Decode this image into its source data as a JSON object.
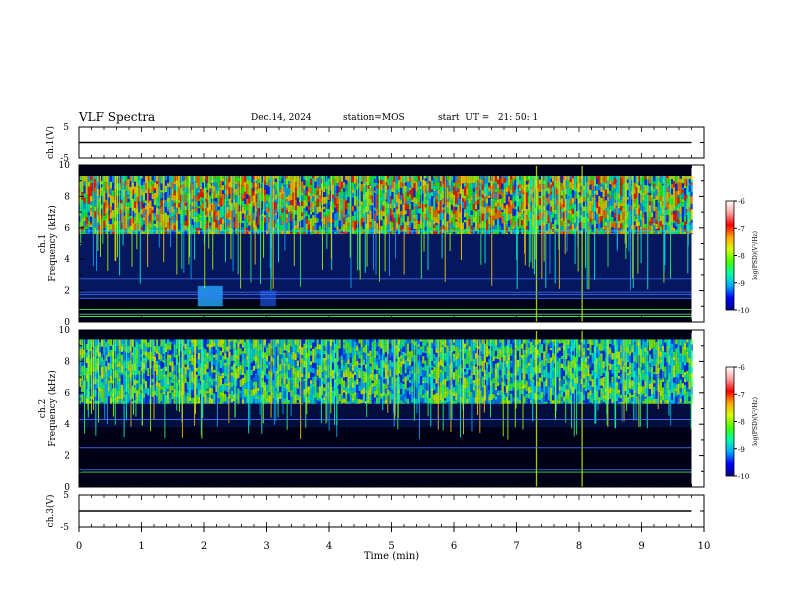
{
  "header": {
    "title": "VLF Spectra",
    "date": "Dec.14, 2024",
    "station": "station=MOS",
    "start": "start  UT =   21: 50: 1"
  },
  "chart_data": [
    {
      "type": "line",
      "ylabel": "ch.1(V)",
      "ylim": [
        -5,
        5
      ],
      "yticks": [
        5,
        -5
      ],
      "series": [
        {
          "x": [
            0,
            9.8
          ],
          "y": [
            0,
            0
          ]
        }
      ]
    },
    {
      "type": "heatmap",
      "ylabel_lines": [
        "ch.1",
        "Frequency (kHz)"
      ],
      "ylim": [
        0,
        10
      ],
      "yticks": [
        0,
        2,
        4,
        6,
        8,
        10
      ],
      "xlim": [
        0,
        10
      ],
      "data_x_end": 9.8,
      "colorbar": {
        "label": "log(PSD)(V²/Hz)",
        "range": [
          -10,
          -6
        ],
        "ticks": [
          "-6",
          "-7",
          "-8",
          "-9",
          "-10"
        ],
        "colors": [
          "#00008a",
          "#0000ff",
          "#00aaff",
          "#00ffaa",
          "#44ff00",
          "#d8ff00",
          "#ffaa00",
          "#ff0000",
          "#ff9e9e",
          "#ffffff"
        ]
      }
    },
    {
      "type": "heatmap",
      "ylabel_lines": [
        "ch.2",
        "Frequency (kHz)"
      ],
      "ylim": [
        0,
        10
      ],
      "yticks": [
        0,
        2,
        4,
        6,
        8,
        10
      ],
      "xlim": [
        0,
        10
      ],
      "data_x_end": 9.8,
      "colorbar": {
        "label": "log(PSD)(V²/Hz)",
        "range": [
          -10,
          -6
        ],
        "ticks": [
          "-6",
          "-7",
          "-8",
          "-9",
          "-10"
        ],
        "colors": [
          "#00008a",
          "#0000ff",
          "#00aaff",
          "#00ffaa",
          "#44ff00",
          "#d8ff00",
          "#ffaa00",
          "#ff0000",
          "#ff9e9e",
          "#ffffff"
        ]
      }
    },
    {
      "type": "line",
      "ylabel": "ch.3(V)",
      "ylim": [
        -5,
        5
      ],
      "yticks": [
        5,
        -5
      ],
      "xlabel": "Time (min)",
      "xticks": [
        "0",
        "1",
        "2",
        "3",
        "4",
        "5",
        "6",
        "7",
        "8",
        "9",
        "10"
      ],
      "series": [
        {
          "x": [
            0,
            9.8
          ],
          "y": [
            0,
            0
          ]
        }
      ]
    }
  ]
}
